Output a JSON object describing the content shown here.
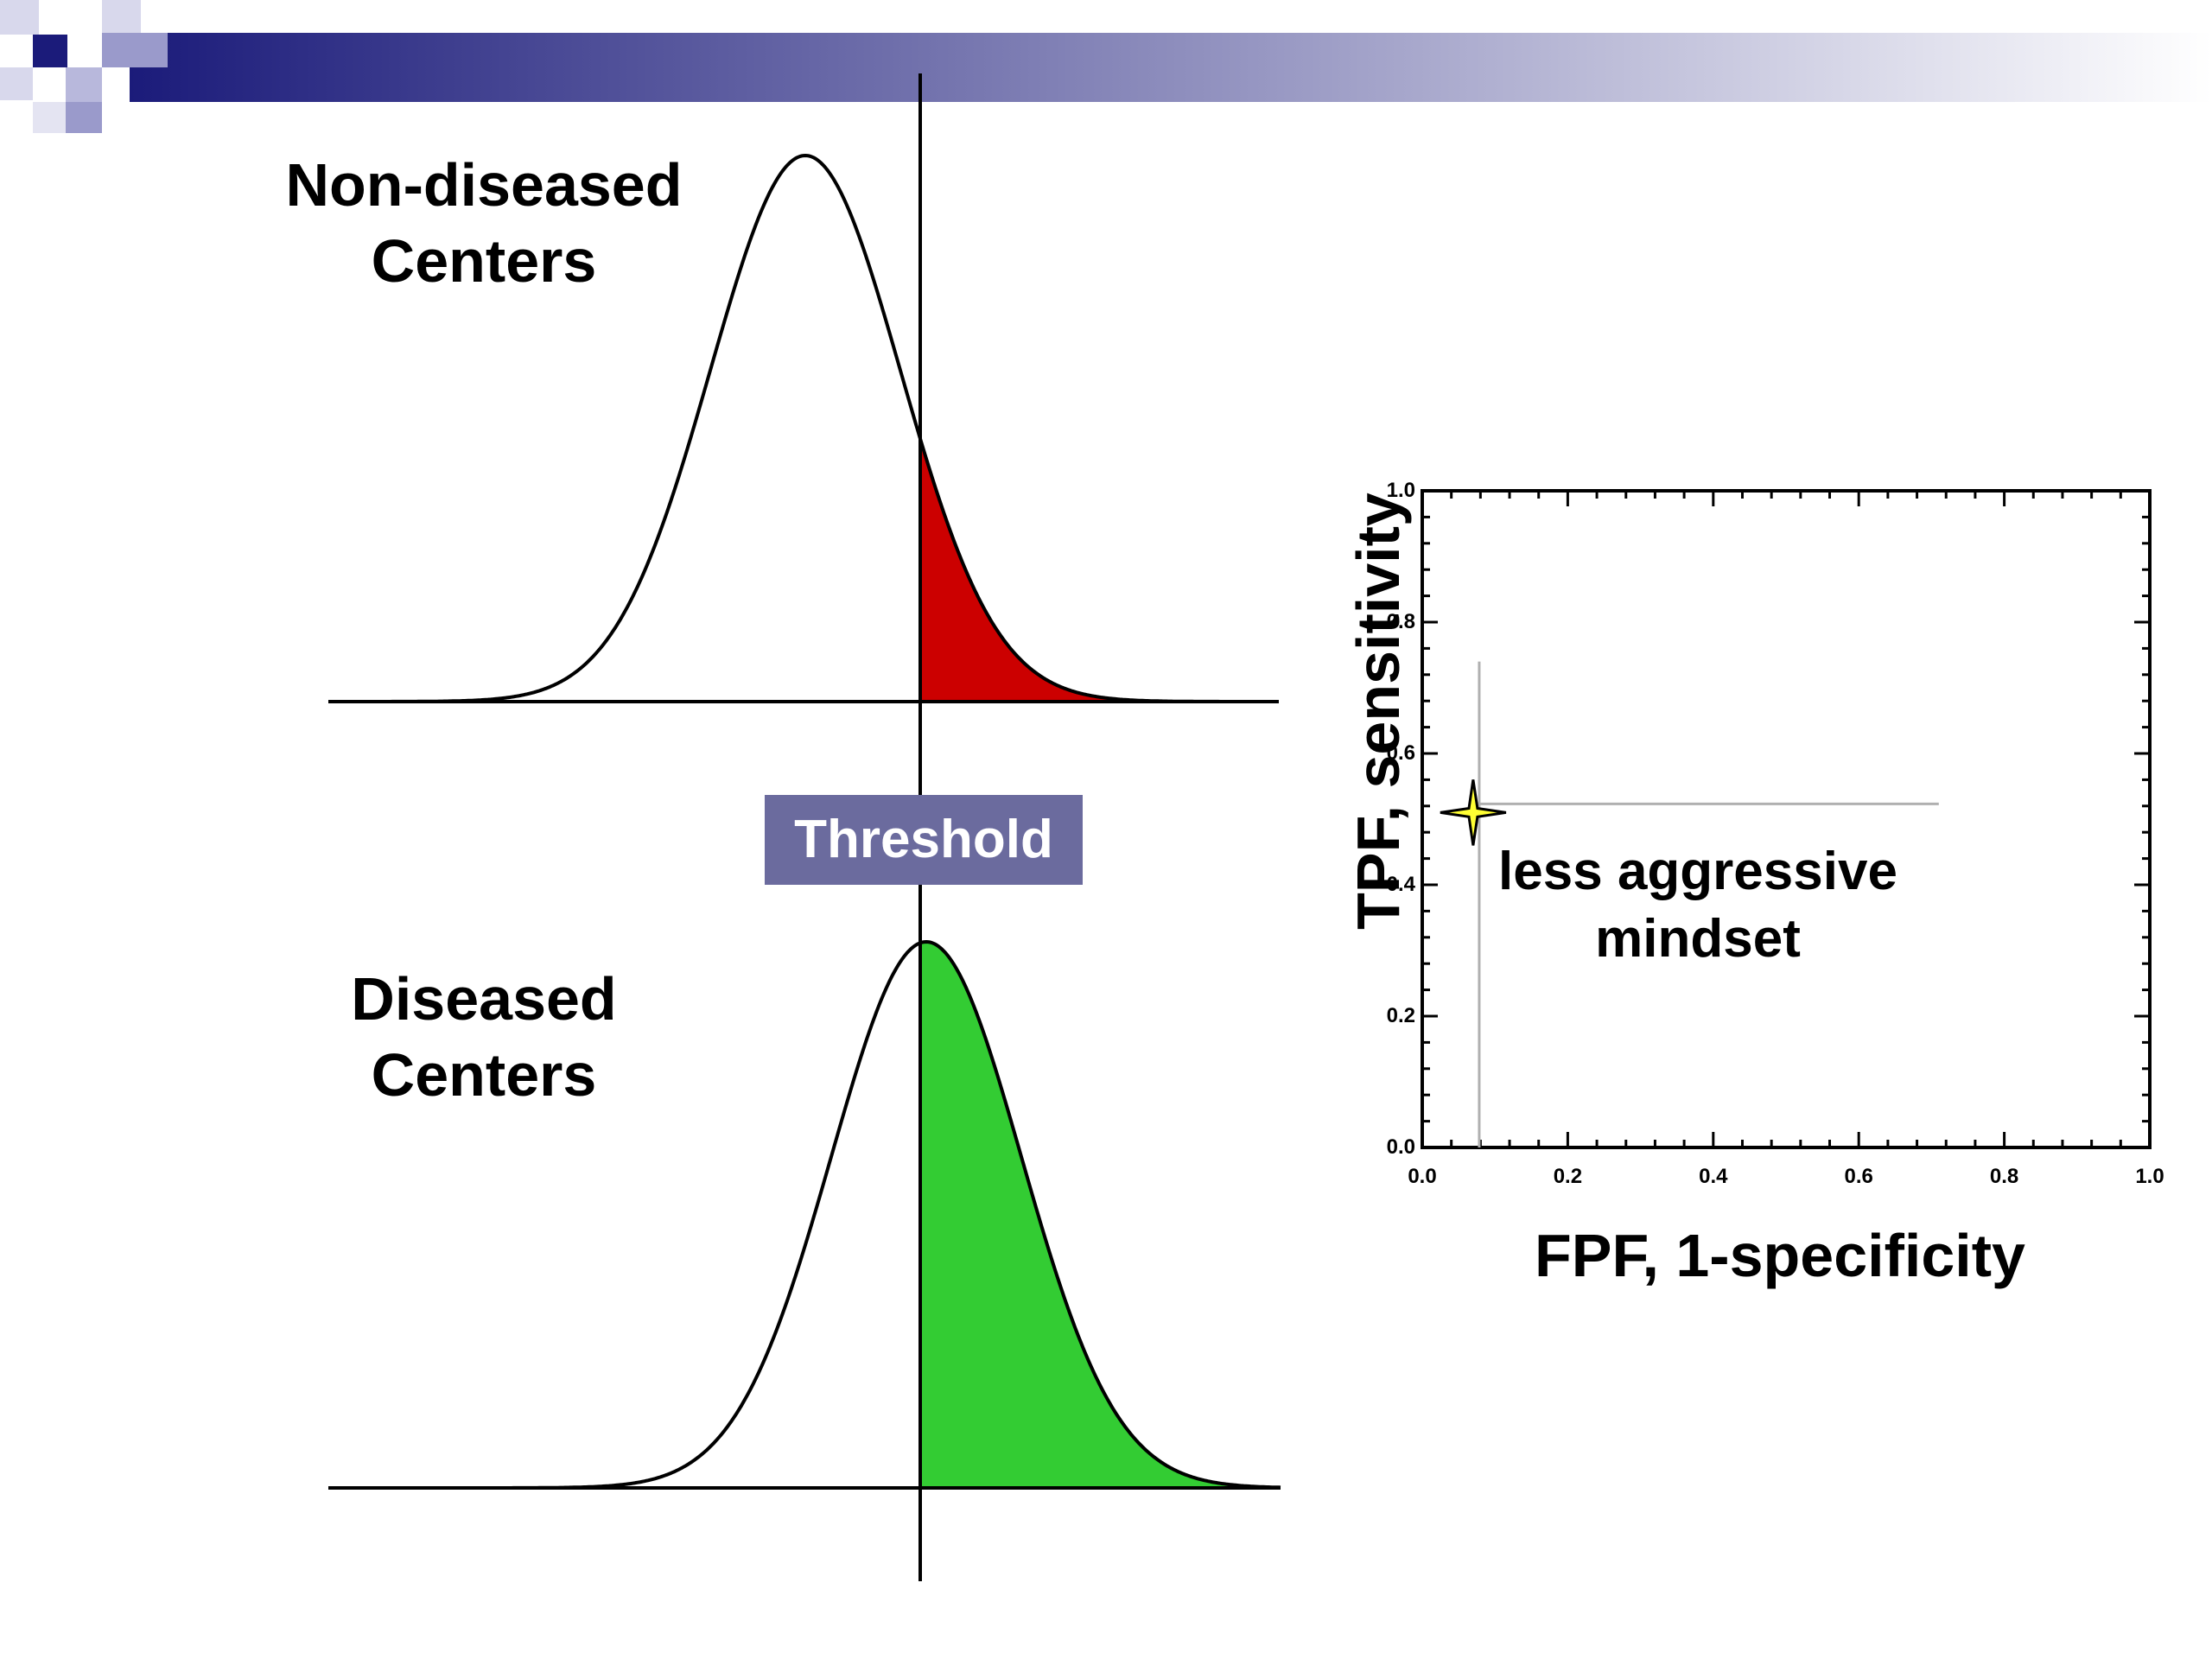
{
  "slide": {
    "header_colors": [
      "#1b1b7a",
      "#ffffff"
    ]
  },
  "diagram": {
    "top_curve_label": "Non-diseased\nCenters",
    "bottom_curve_label": "Diseased\nCenters",
    "threshold_label": "Threshold",
    "false_positive_color": "#cc0000",
    "true_positive_color": "#33cc33"
  },
  "chart_data": {
    "type": "scatter",
    "xlabel": "FPF, 1-specificity",
    "ylabel": "TPF, sensitivity",
    "xlim": [
      0.0,
      1.0
    ],
    "ylim": [
      0.0,
      1.0
    ],
    "xticks": [
      "0.0",
      "0.2",
      "0.4",
      "0.6",
      "0.8",
      "1.0"
    ],
    "yticks": [
      "0.0",
      "0.2",
      "0.4",
      "0.6",
      "0.8",
      "1.0"
    ],
    "points": [
      {
        "x": 0.07,
        "y": 0.51,
        "marker": "star",
        "color": "#ffff33"
      }
    ],
    "annotation": "less aggressive\nmindset"
  }
}
